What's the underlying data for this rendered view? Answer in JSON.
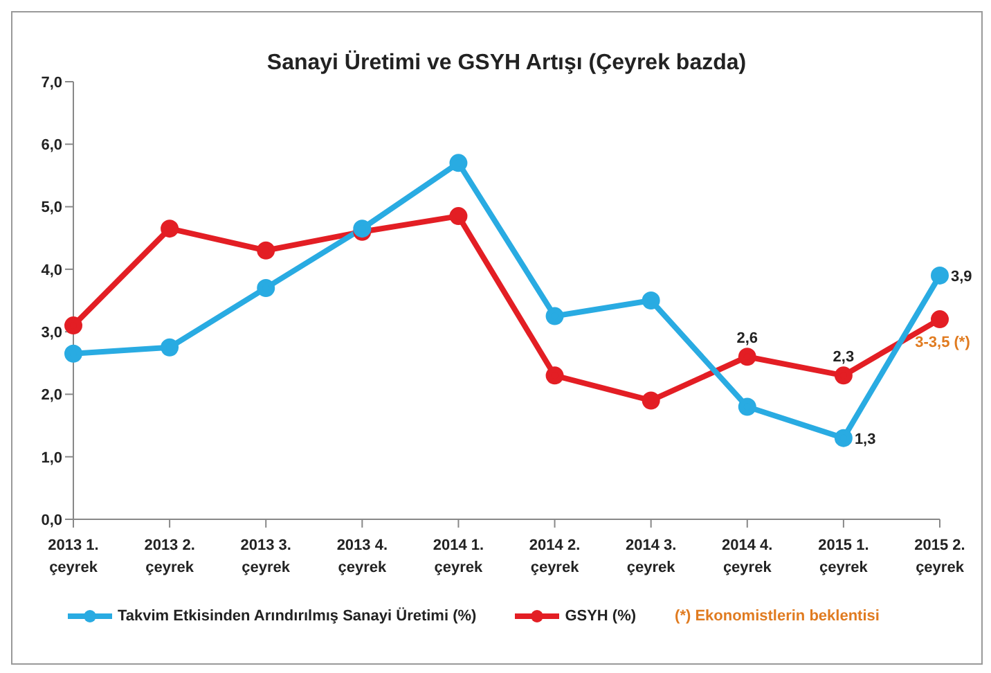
{
  "chart_data": {
    "type": "line",
    "title": "Sanayi Üretimi ve GSYH Artışı (Çeyrek bazda)",
    "categories": [
      "2013 1. çeyrek",
      "2013 2. çeyrek",
      "2013 3. çeyrek",
      "2013 4. çeyrek",
      "2014 1. çeyrek",
      "2014 2. çeyrek",
      "2014 3. çeyrek",
      "2014 4. çeyrek",
      "2015 1. çeyrek",
      "2015 2. çeyrek"
    ],
    "series": [
      {
        "name": "Takvim Etkisinden Arındırılmış Sanayi Üretimi (%)",
        "color": "#29abe2",
        "values": [
          2.65,
          2.75,
          3.7,
          4.65,
          5.7,
          3.25,
          3.5,
          1.8,
          1.3,
          3.9
        ],
        "value_labels": [
          null,
          null,
          null,
          null,
          null,
          null,
          null,
          null,
          "1,3",
          "3,9"
        ]
      },
      {
        "name": "GSYH (%)",
        "color": "#e31e24",
        "values": [
          3.1,
          4.65,
          4.3,
          4.6,
          4.85,
          2.3,
          1.9,
          2.6,
          2.3,
          3.2
        ],
        "value_labels": [
          null,
          null,
          null,
          null,
          null,
          null,
          null,
          "2,6",
          "2,3",
          null
        ]
      }
    ],
    "ylim": [
      0,
      7
    ],
    "yticks": [
      {
        "value": 0,
        "label": "0,0"
      },
      {
        "value": 1,
        "label": "1,0"
      },
      {
        "value": 2,
        "label": "2,0"
      },
      {
        "value": 3,
        "label": "3,0"
      },
      {
        "value": 4,
        "label": "4,0"
      },
      {
        "value": 5,
        "label": "5,0"
      },
      {
        "value": 6,
        "label": "6,0"
      },
      {
        "value": 7,
        "label": "7,0"
      }
    ],
    "grid": false,
    "legend": "bottom",
    "marker": "circle",
    "line_style": "solid",
    "annotations": [
      {
        "text": "3-3,5 (*)",
        "x": "2015 2. çeyrek",
        "y": 3.2
      },
      "(*) Ekonomistlerin beklentisi"
    ]
  }
}
